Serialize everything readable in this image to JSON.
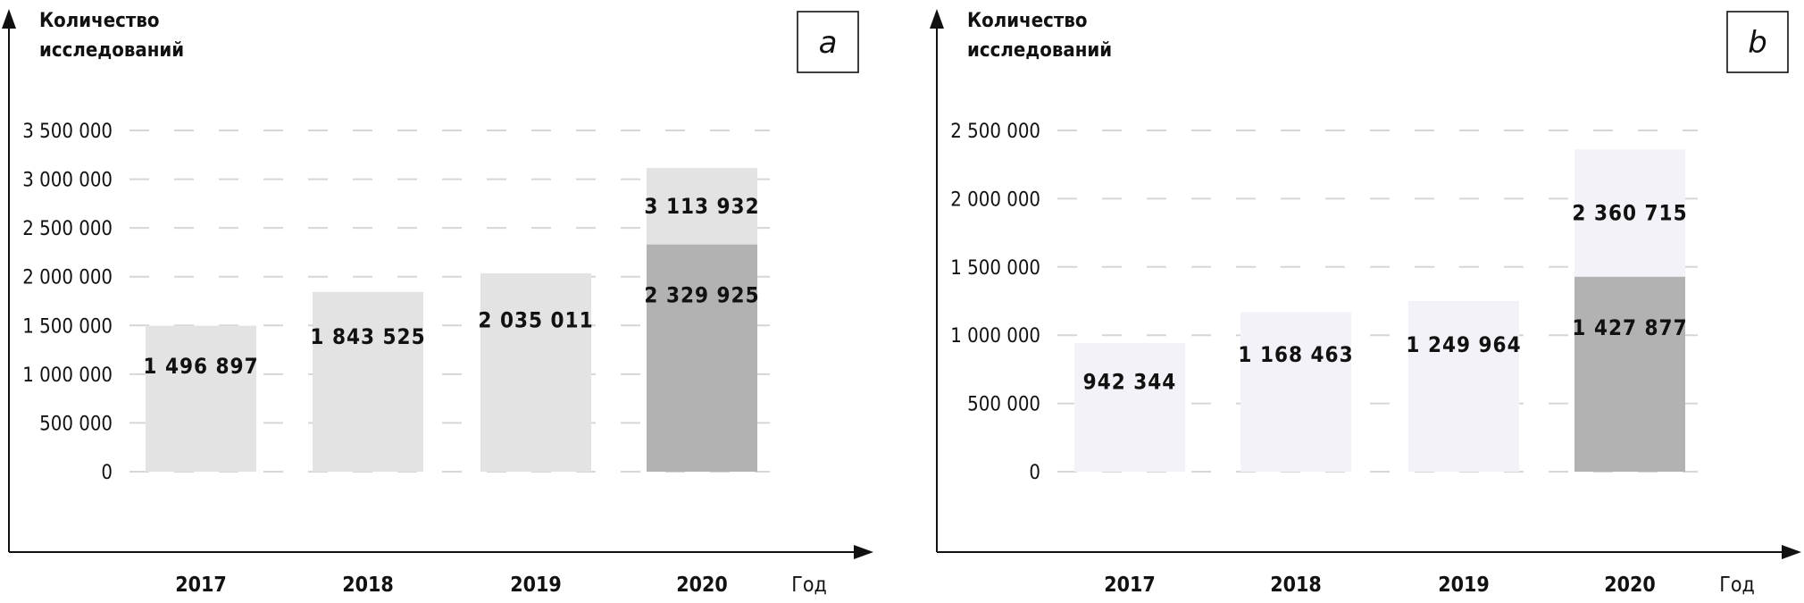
{
  "chart_data": [
    {
      "type": "bar",
      "panel_label": "a",
      "ylabel_lines": [
        "Количество",
        "исследований"
      ],
      "xlabel": "Год",
      "categories": [
        "2017",
        "2018",
        "2019",
        "2020"
      ],
      "values": [
        1496897,
        1843525,
        2035011,
        3113932
      ],
      "value_labels": [
        "1 496 897",
        "1 843 525",
        "2 035 011",
        "3 113 932"
      ],
      "stacked_lower": {
        "category": "2020",
        "value": 2329925,
        "label": "2 329 925"
      },
      "ylim": [
        0,
        3500000
      ],
      "yticks": [
        0,
        500000,
        1000000,
        1500000,
        2000000,
        2500000,
        3000000,
        3500000
      ],
      "ytick_labels": [
        "0",
        "500 000",
        "1 000 000",
        "1 500 000",
        "2 000 000",
        "2 500 000",
        "3 000 000",
        "3 500 000"
      ],
      "grid": "dashed-horizontal",
      "colors": {
        "bar": "#e3e3e3",
        "lower": "#b2b2b2",
        "grid": "#d6d6d6"
      }
    },
    {
      "type": "bar",
      "panel_label": "b",
      "ylabel_lines": [
        "Количество",
        "исследований"
      ],
      "xlabel": "Год",
      "categories": [
        "2017",
        "2018",
        "2019",
        "2020"
      ],
      "values": [
        942344,
        1168463,
        1249964,
        2360715
      ],
      "value_labels": [
        "942 344",
        "1 168 463",
        "1 249 964",
        "2 360 715"
      ],
      "stacked_lower": {
        "category": "2020",
        "value": 1427877,
        "label": "1 427 877"
      },
      "ylim": [
        0,
        2500000
      ],
      "yticks": [
        0,
        500000,
        1000000,
        1500000,
        2000000,
        2500000
      ],
      "ytick_labels": [
        "0",
        "500 000",
        "1 000 000",
        "1 500 000",
        "2 000 000",
        "2 500 000"
      ],
      "grid": "dashed-horizontal",
      "colors": {
        "bar": "#f2f2f8",
        "lower": "#b2b2b2",
        "grid": "#d6d6d6"
      }
    }
  ]
}
